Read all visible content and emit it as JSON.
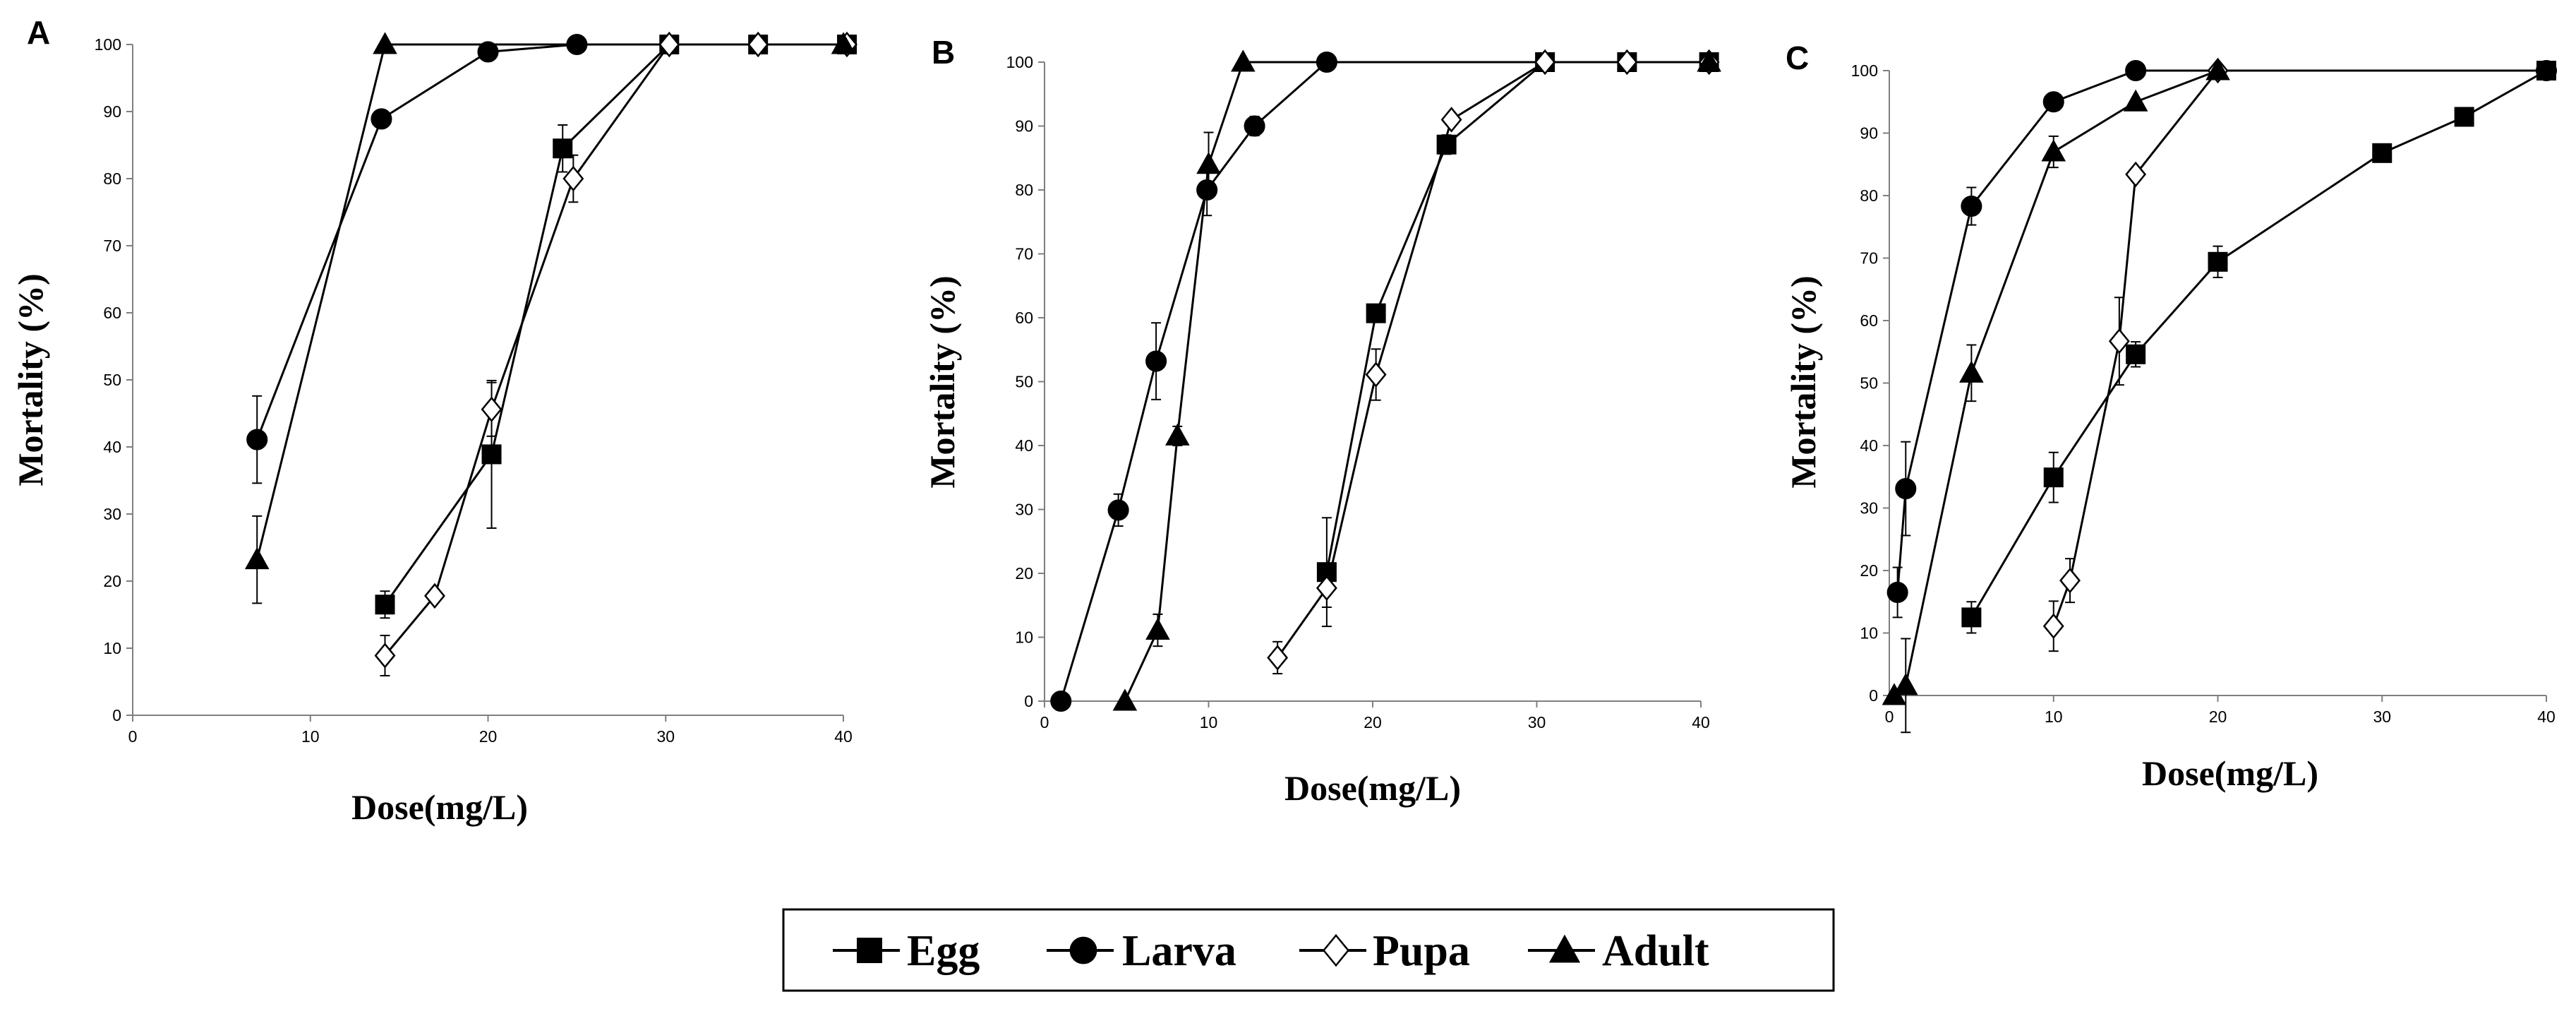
{
  "chart_data": [
    {
      "type": "line",
      "panel": "A",
      "xlabel": "Dose(mg/L)",
      "ylabel": "Mortality (%)",
      "xlim": [
        0,
        40
      ],
      "ylim": [
        0,
        100
      ],
      "xticks": [
        0,
        10,
        20,
        30,
        40
      ],
      "yticks": [
        0,
        10,
        20,
        30,
        40,
        50,
        60,
        70,
        80,
        90,
        100
      ],
      "series": [
        {
          "name": "Egg",
          "x": [
            14.2,
            20.2,
            24.2,
            30.2,
            35.2,
            40.2
          ],
          "y": [
            16.5,
            38.9,
            84.5,
            100,
            100,
            100
          ],
          "err": [
            2.0,
            11.0,
            3.5,
            0,
            0,
            0
          ]
        },
        {
          "name": "Larva",
          "x": [
            7,
            14,
            20,
            25
          ],
          "y": [
            41.1,
            88.9,
            98.9,
            100
          ],
          "err": [
            6.5,
            1.0,
            0,
            0
          ]
        },
        {
          "name": "Pupa",
          "x": [
            14.2,
            17,
            20.2,
            24.8,
            30.2,
            35.2,
            40.2
          ],
          "y": [
            8.9,
            17.8,
            45.6,
            80,
            100,
            100,
            100
          ],
          "err": [
            3.0,
            0,
            4.0,
            3.5,
            0,
            0,
            0
          ]
        },
        {
          "name": "Adult",
          "x": [
            7,
            14.2,
            40
          ],
          "y": [
            23.2,
            100,
            100
          ],
          "err": [
            6.5,
            0,
            0
          ]
        }
      ]
    },
    {
      "type": "line",
      "panel": "B",
      "xlabel": "Dose(mg/L)",
      "ylabel": "Mortality (%)",
      "xlim": [
        0,
        40
      ],
      "ylim": [
        0,
        100
      ],
      "xticks": [
        0,
        10,
        20,
        30,
        40
      ],
      "yticks": [
        0,
        10,
        20,
        30,
        40,
        50,
        60,
        70,
        80,
        90,
        100
      ],
      "series": [
        {
          "name": "Egg",
          "x": [
            17.2,
            20.2,
            24.5,
            30.5,
            35.5,
            40.5
          ],
          "y": [
            20.2,
            60.7,
            87.1,
            100,
            100,
            100
          ],
          "err": [
            8.5,
            0,
            1.5,
            0,
            0,
            0
          ]
        },
        {
          "name": "Larva",
          "x": [
            1,
            4.5,
            6.8,
            9.9,
            12.8,
            17.2
          ],
          "y": [
            0,
            29.9,
            53.2,
            80,
            90,
            100
          ],
          "err": [
            0,
            2.5,
            6,
            4,
            1.5,
            0
          ]
        },
        {
          "name": "Pupa",
          "x": [
            14.2,
            17.2,
            20.2,
            24.8,
            30.5,
            35.5,
            40.5
          ],
          "y": [
            6.8,
            17.7,
            51.1,
            91,
            100,
            100,
            100
          ],
          "err": [
            2.5,
            3,
            4,
            0,
            0,
            0,
            0
          ]
        },
        {
          "name": "Adult",
          "x": [
            4.9,
            6.9,
            8.1,
            10,
            12.1,
            40.5
          ],
          "y": [
            0,
            11.1,
            41.5,
            84,
            100,
            100
          ],
          "err": [
            0,
            2.5,
            1.5,
            5,
            0,
            0
          ]
        }
      ]
    },
    {
      "type": "line",
      "panel": "C",
      "xlabel": "Dose(mg/L)",
      "ylabel": "Mortality (%)",
      "xlim": [
        0,
        40
      ],
      "ylim": [
        0,
        100
      ],
      "xticks": [
        0,
        10,
        20,
        30,
        40
      ],
      "yticks": [
        0,
        10,
        20,
        30,
        40,
        50,
        60,
        70,
        80,
        90,
        100
      ],
      "series": [
        {
          "name": "Egg",
          "x": [
            5,
            10,
            15,
            20,
            30,
            35,
            40
          ],
          "y": [
            12.5,
            34.9,
            54.6,
            69.4,
            86.8,
            92.6,
            100
          ],
          "err": [
            2.5,
            4,
            2,
            2.5,
            0,
            0,
            0
          ]
        },
        {
          "name": "Larva",
          "x": [
            0.5,
            1,
            5,
            10,
            15,
            40
          ],
          "y": [
            16.5,
            33.1,
            78.3,
            95,
            100,
            100
          ],
          "err": [
            4,
            7.5,
            3,
            0,
            0,
            0
          ]
        },
        {
          "name": "Pupa",
          "x": [
            10,
            11,
            14,
            15,
            20
          ],
          "y": [
            11.1,
            18.4,
            56.7,
            83.4,
            100
          ],
          "err": [
            4,
            3.5,
            7,
            0,
            0
          ]
        },
        {
          "name": "Adult",
          "x": [
            0.3,
            1,
            5,
            10,
            15,
            20
          ],
          "y": [
            0,
            1.6,
            51.6,
            87,
            95,
            100
          ],
          "err": [
            0,
            7.5,
            4.5,
            2.5,
            0,
            0
          ]
        }
      ]
    }
  ],
  "legend": [
    {
      "name": "Egg",
      "label": "Egg"
    },
    {
      "name": "Larva",
      "label": "Larva"
    },
    {
      "name": "Pupa",
      "label": "Pupa"
    },
    {
      "name": "Adult",
      "label": "Adult"
    }
  ],
  "marker_styles": {
    "Egg": {
      "shape": "square",
      "fill": "#000000"
    },
    "Larva": {
      "shape": "circle",
      "fill": "#000000"
    },
    "Pupa": {
      "shape": "diamond",
      "fill": "#ffffff"
    },
    "Adult": {
      "shape": "triangle",
      "fill": "#000000"
    }
  }
}
